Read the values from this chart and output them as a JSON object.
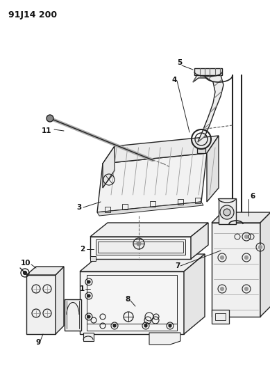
{
  "title": "91J14 200",
  "bg_color": "#ffffff",
  "lc": "#222222",
  "label_color": "#111111",
  "figsize": [
    3.89,
    5.33
  ],
  "dpi": 100
}
